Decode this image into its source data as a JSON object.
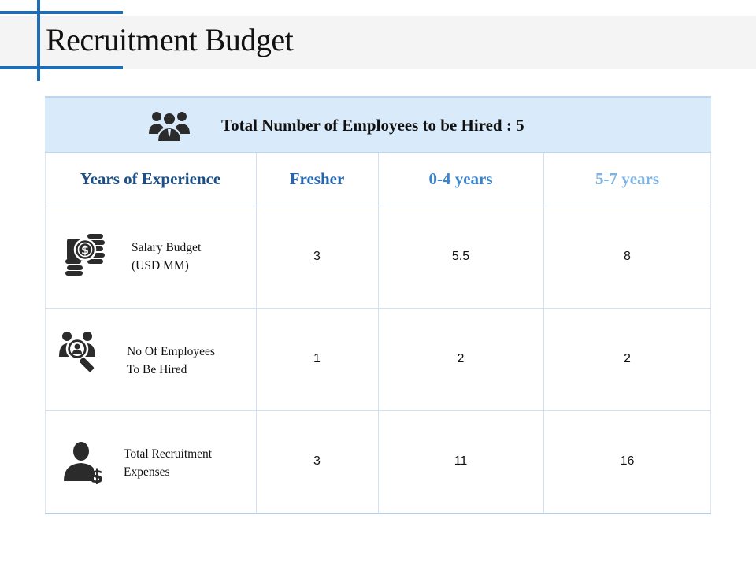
{
  "slide": {
    "title": "Recruitment Budget"
  },
  "summary": {
    "icon": "people-group-icon",
    "text": "Total Number of Employees to be Hired : 5"
  },
  "table": {
    "headers": [
      {
        "label": "Years of Experience",
        "color": "#1b4f86"
      },
      {
        "label": "Fresher",
        "color": "#2467b0"
      },
      {
        "label": "0-4 years",
        "color": "#3a84cf"
      },
      {
        "label": "5-7 years",
        "color": "#7db3e3"
      }
    ],
    "rows": [
      {
        "icon": "money-coins-icon",
        "label_line1": "Salary Budget",
        "label_line2": "(USD MM)",
        "values": [
          "3",
          "5.5",
          "8"
        ]
      },
      {
        "icon": "people-search-icon",
        "label_line1": "No Of Employees",
        "label_line2": "To Be Hired",
        "values": [
          "1",
          "2",
          "2"
        ]
      },
      {
        "icon": "person-dollar-icon",
        "label_line1": "Total Recruitment",
        "label_line2": "Expenses",
        "values": [
          "3",
          "11",
          "16"
        ]
      }
    ]
  },
  "colors": {
    "accent": "#1f6db5",
    "summary_bg": "#d9ebfb",
    "grid": "#cfe1f2"
  }
}
